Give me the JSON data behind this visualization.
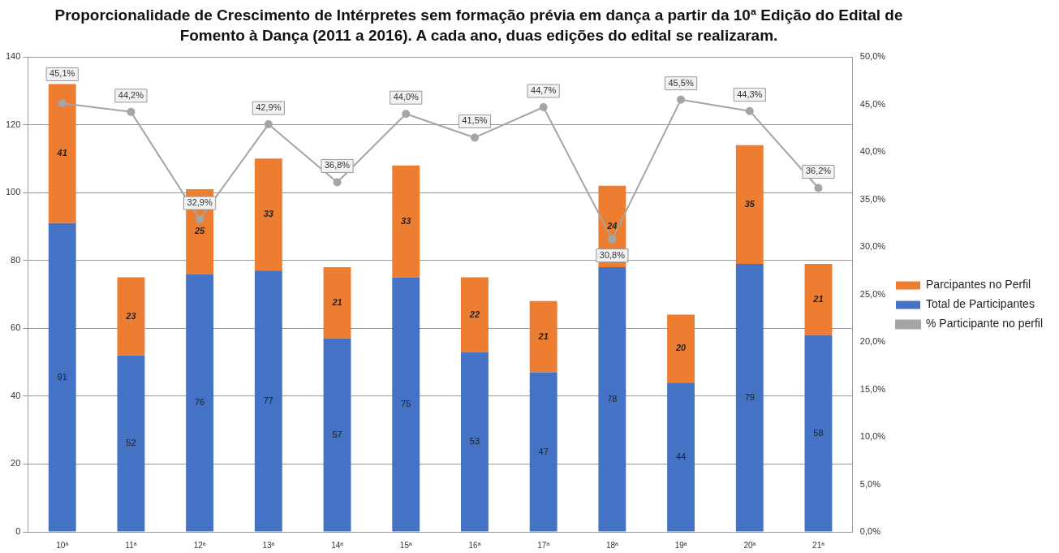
{
  "chart_data": {
    "type": "bar",
    "stacked": true,
    "title": "Proporcionalidade de Crescimento de Intérpretes sem formação prévia em dança a partir da 10ª Edição do Edital de Fomento à Dança (2011 a 2016). A cada ano, duas edições do edital se realizaram.",
    "categories": [
      "10ª",
      "11ª",
      "12ª",
      "13ª",
      "14ª",
      "15ª",
      "16ª",
      "17ª",
      "18ª",
      "19ª",
      "20ª",
      "21ª"
    ],
    "series": [
      {
        "name": "Total de Participantes",
        "color": "#4472c4",
        "values": [
          91,
          52,
          76,
          77,
          57,
          75,
          53,
          47,
          78,
          44,
          79,
          58
        ]
      },
      {
        "name": "Parcipantes no Perfil",
        "color": "#ed7d31",
        "values": [
          41,
          23,
          25,
          33,
          21,
          33,
          22,
          21,
          24,
          20,
          35,
          21
        ]
      },
      {
        "name": "% Participante no perfil",
        "type": "line",
        "axis": "y2",
        "color": "#a5a5a5",
        "values": [
          45.1,
          44.2,
          32.9,
          42.9,
          36.8,
          44.0,
          41.5,
          44.7,
          30.8,
          45.5,
          44.3,
          36.2
        ],
        "value_labels": [
          "45,1%",
          "44,2%",
          "32,9%",
          "42,9%",
          "36,8%",
          "44,0%",
          "41,5%",
          "44,7%",
          "30,8%",
          "45,5%",
          "44,3%",
          "36,2%"
        ]
      }
    ],
    "ylim": [
      0,
      140
    ],
    "yticks": [
      0,
      20,
      40,
      60,
      80,
      100,
      120,
      140
    ],
    "y2lim": [
      0,
      50
    ],
    "y2ticks": [
      {
        "value": 0,
        "label": "0,0%"
      },
      {
        "value": 5,
        "label": "5,0%"
      },
      {
        "value": 10,
        "label": "10,0%"
      },
      {
        "value": 15,
        "label": "15,0%"
      },
      {
        "value": 20,
        "label": "20,0%"
      },
      {
        "value": 25,
        "label": "25,0%"
      },
      {
        "value": 30,
        "label": "30,0%"
      },
      {
        "value": 35,
        "label": "35,0%"
      },
      {
        "value": 40,
        "label": "40,0%"
      },
      {
        "value": 45,
        "label": "45,0%"
      },
      {
        "value": 50,
        "label": "50,0%"
      }
    ],
    "data_labels": true,
    "grid": "y",
    "legend": "right",
    "marker": "circle",
    "line_style": "solid"
  }
}
